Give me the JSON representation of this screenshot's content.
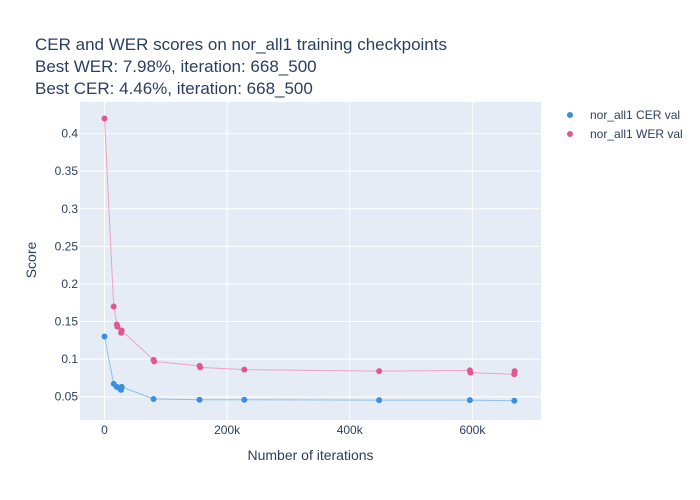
{
  "chart_data": {
    "type": "scatter",
    "title_lines": [
      "CER and WER scores on nor_all1 training checkpoints",
      "Best WER: 7.98%,  iteration: 668_500",
      "Best CER: 4.46%, iteration: 668_500"
    ],
    "xlabel": "Number of iterations",
    "ylabel": "Score",
    "xlim": [
      -40000,
      712000
    ],
    "ylim": [
      0.019,
      0.442
    ],
    "x_ticks": [
      0,
      200000,
      400000,
      600000
    ],
    "x_tick_labels": [
      "0",
      "200k",
      "400k",
      "600k"
    ],
    "y_ticks": [
      0.05,
      0.1,
      0.15,
      0.2,
      0.25,
      0.3,
      0.35,
      0.4
    ],
    "y_tick_labels": [
      "0.05",
      "0.1",
      "0.15",
      "0.2",
      "0.25",
      "0.3",
      "0.35",
      "0.4"
    ],
    "grid": true,
    "legend_position": "right",
    "plot_background": "#e5ecf6",
    "series": [
      {
        "name": "nor_all1 CER val",
        "marker_color": "#3a8fe0",
        "line_color": "#8cc1f0",
        "points": [
          {
            "x": 0,
            "y": 0.13
          },
          {
            "x": 15000,
            "y": 0.067
          },
          {
            "x": 20000,
            "y": 0.063
          },
          {
            "x": 25000,
            "y": 0.061
          },
          {
            "x": 27000,
            "y": 0.059
          },
          {
            "x": 28000,
            "y": 0.063
          },
          {
            "x": 80000,
            "y": 0.047
          },
          {
            "x": 155000,
            "y": 0.046
          },
          {
            "x": 228000,
            "y": 0.046
          },
          {
            "x": 448000,
            "y": 0.0455
          },
          {
            "x": 596000,
            "y": 0.0455
          },
          {
            "x": 668500,
            "y": 0.0446
          }
        ]
      },
      {
        "name": "nor_all1 WER val",
        "marker_color": "#e0588f",
        "line_color": "#f0a3c2",
        "points": [
          {
            "x": 0,
            "y": 0.42
          },
          {
            "x": 15000,
            "y": 0.17
          },
          {
            "x": 20000,
            "y": 0.146
          },
          {
            "x": 21000,
            "y": 0.143
          },
          {
            "x": 27000,
            "y": 0.135
          },
          {
            "x": 28000,
            "y": 0.138
          },
          {
            "x": 80000,
            "y": 0.099
          },
          {
            "x": 81000,
            "y": 0.097
          },
          {
            "x": 155000,
            "y": 0.091
          },
          {
            "x": 156000,
            "y": 0.089
          },
          {
            "x": 228000,
            "y": 0.086
          },
          {
            "x": 448000,
            "y": 0.084
          },
          {
            "x": 596000,
            "y": 0.085
          },
          {
            "x": 597000,
            "y": 0.082
          },
          {
            "x": 668500,
            "y": 0.0798
          },
          {
            "x": 669000,
            "y": 0.084
          }
        ]
      }
    ]
  }
}
